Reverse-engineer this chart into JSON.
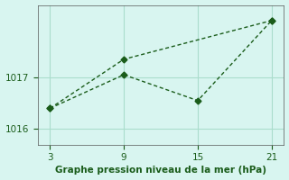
{
  "line1_x": [
    3,
    9,
    21
  ],
  "line1_y": [
    1016.4,
    1017.35,
    1018.1
  ],
  "line2_x": [
    3,
    9,
    15,
    21
  ],
  "line2_y": [
    1016.4,
    1017.05,
    1016.55,
    1018.1
  ],
  "line_color": "#1a5c1a",
  "bg_color": "#d8f5f0",
  "grid_color": "#aaddcc",
  "xlabel": "Graphe pression niveau de la mer (hPa)",
  "xlabel_color": "#1a5c1a",
  "xticks": [
    3,
    9,
    15,
    21
  ],
  "yticks": [
    1016,
    1017
  ],
  "xlim": [
    2,
    22
  ],
  "ylim": [
    1015.7,
    1018.4
  ],
  "tick_color": "#1a5c1a",
  "spine_color": "#555555"
}
